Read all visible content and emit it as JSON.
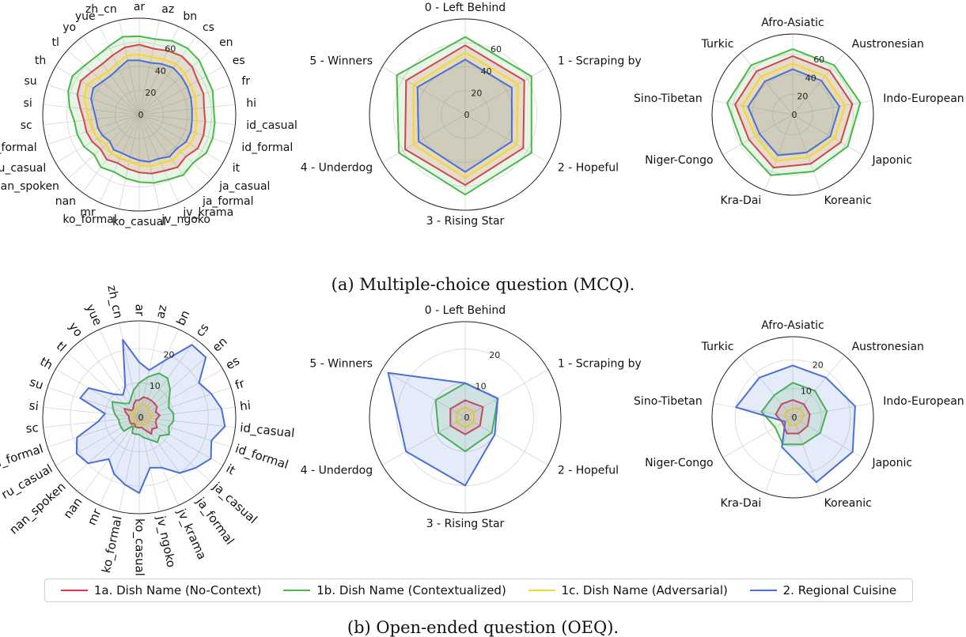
{
  "captions": {
    "a": "(a) Multiple-choice question (MCQ).",
    "b": "(b) Open-ended question (OEQ)."
  },
  "legend": [
    {
      "label": "1a. Dish Name (No-Context)",
      "color": "#e8334f"
    },
    {
      "label": "1b. Dish Name (Contextualized)",
      "color": "#4cb848"
    },
    {
      "label": "1c. Dish Name (Adversarial)",
      "color": "#f5d633"
    },
    {
      "label": "2. Regional Cuisine",
      "color": "#4a6fd8"
    }
  ],
  "chart_data": [
    {
      "type": "radar",
      "panel": "MCQ - by language",
      "rmax": 80,
      "ticks": [
        0,
        20,
        40,
        60
      ],
      "categories": [
        "ar",
        "az",
        "bn",
        "cs",
        "en",
        "es",
        "fr",
        "hi",
        "id_casual",
        "id_formal",
        "it",
        "ja_casual",
        "ja_formal",
        "jv_krama",
        "jv_ngoko",
        "ko_casual",
        "ko_formal",
        "mr",
        "nan",
        "nan_spoken",
        "ru_casual",
        "ru_formal",
        "sc",
        "si",
        "su",
        "th",
        "tl",
        "yo",
        "yue",
        "zh_cn"
      ],
      "series": [
        {
          "name": "1a. Dish Name (No-Context)",
          "values": [
            58,
            56,
            58,
            60,
            59,
            56,
            56,
            54,
            55,
            56,
            56,
            52,
            54,
            51,
            50,
            48,
            46,
            44,
            46,
            43,
            45,
            46,
            46,
            49,
            54,
            56,
            53,
            52,
            54,
            57
          ]
        },
        {
          "name": "1b. Dish Name (Contextualized)",
          "values": [
            65,
            64,
            67,
            68,
            67,
            64,
            64,
            62,
            63,
            64,
            64,
            60,
            62,
            59,
            58,
            56,
            54,
            52,
            54,
            50,
            53,
            54,
            54,
            58,
            62,
            64,
            61,
            60,
            62,
            66
          ]
        },
        {
          "name": "1c. Dish Name (Adversarial)",
          "values": [
            50,
            49,
            50,
            52,
            51,
            49,
            49,
            47,
            48,
            49,
            49,
            46,
            47,
            44,
            44,
            42,
            40,
            39,
            40,
            37,
            40,
            41,
            42,
            44,
            48,
            50,
            46,
            44,
            46,
            50
          ]
        },
        {
          "name": "2. Regional Cuisine",
          "values": [
            45,
            44,
            46,
            48,
            47,
            46,
            45,
            44,
            44,
            45,
            45,
            42,
            43,
            40,
            40,
            38,
            36,
            35,
            36,
            33,
            35,
            36,
            36,
            38,
            42,
            44,
            41,
            40,
            42,
            46
          ]
        }
      ]
    },
    {
      "type": "radar",
      "panel": "MCQ - by resource class",
      "rmax": 80,
      "ticks": [
        0,
        20,
        40,
        60
      ],
      "categories": [
        "0 - Left Behind",
        "1 - Scraping by",
        "2 - Hopeful",
        "3 - Rising Star",
        "4 - Underdog",
        "5 - Winners"
      ],
      "series": [
        {
          "name": "1a. Dish Name (No-Context)",
          "values": [
            58,
            57,
            56,
            59,
            58,
            57
          ]
        },
        {
          "name": "1b. Dish Name (Contextualized)",
          "values": [
            65,
            64,
            64,
            67,
            64,
            66
          ]
        },
        {
          "name": "1c. Dish Name (Adversarial)",
          "values": [
            52,
            51,
            50,
            53,
            50,
            50
          ]
        },
        {
          "name": "2. Regional Cuisine",
          "values": [
            46,
            45,
            45,
            48,
            45,
            46
          ]
        }
      ]
    },
    {
      "type": "radar",
      "panel": "MCQ - by language family",
      "rmax": 80,
      "ticks": [
        0,
        20,
        40,
        60
      ],
      "categories": [
        "Afro-Asiatic",
        "Austronesian",
        "Indo-European",
        "Japonic",
        "Koreanic",
        "Kra-Dai",
        "Niger-Congo",
        "Sino-Tibetan",
        "Turkic"
      ],
      "series": [
        {
          "name": "1a. Dish Name (No-Context)",
          "values": [
            58,
            57,
            60,
            55,
            52,
            56,
            50,
            58,
            56
          ]
        },
        {
          "name": "1b. Dish Name (Contextualized)",
          "values": [
            65,
            64,
            68,
            63,
            60,
            64,
            58,
            66,
            64
          ]
        },
        {
          "name": "1c. Dish Name (Adversarial)",
          "values": [
            51,
            50,
            53,
            48,
            45,
            49,
            43,
            51,
            49
          ]
        },
        {
          "name": "2. Regional Cuisine",
          "values": [
            45,
            44,
            47,
            43,
            40,
            43,
            38,
            45,
            43
          ]
        }
      ]
    },
    {
      "type": "radar",
      "panel": "OEQ - by language",
      "rmax": 28,
      "ticks": [
        0,
        10,
        20
      ],
      "categories": [
        "ar",
        "az",
        "bn",
        "cs",
        "en",
        "es",
        "fr",
        "hi",
        "id_casual",
        "id_formal",
        "it",
        "ja_casual",
        "ja_formal",
        "jv_krama",
        "jv_ngoko",
        "ko_casual",
        "ko_formal",
        "mr",
        "nan",
        "nan_spoken",
        "ru_casual",
        "ru_formal",
        "sc",
        "si",
        "su",
        "th",
        "tl",
        "yo",
        "yue",
        "zh_cn"
      ],
      "series": [
        {
          "name": "1a. Dish Name (No-Context)",
          "values": [
            5,
            6,
            6,
            6,
            6,
            6,
            5,
            6,
            5,
            5,
            6,
            5,
            6,
            4,
            3,
            3,
            3,
            3,
            2,
            3,
            3,
            3,
            3,
            3,
            4,
            5,
            3,
            3,
            4,
            5
          ]
        },
        {
          "name": "1b. Dish Name (Contextualized)",
          "values": [
            10,
            12,
            14,
            14,
            12,
            10,
            9,
            10,
            10,
            9,
            10,
            8,
            9,
            7,
            6,
            5,
            5,
            5,
            3,
            6,
            6,
            6,
            6,
            7,
            8,
            9,
            6,
            5,
            6,
            8
          ]
        },
        {
          "name": "1c. Dish Name (Adversarial)",
          "values": [
            3,
            4,
            4,
            4,
            4,
            3,
            3,
            4,
            3,
            3,
            3,
            3,
            3,
            2,
            2,
            2,
            2,
            2,
            2,
            2,
            2,
            2,
            2,
            2,
            2,
            3,
            2,
            2,
            2,
            3
          ]
        },
        {
          "name": "2. Regional Cuisine",
          "values": [
            16,
            14,
            18,
            26,
            26,
            20,
            22,
            24,
            25,
            22,
            24,
            22,
            20,
            16,
            15,
            22,
            20,
            18,
            15,
            20,
            21,
            19,
            12,
            10,
            18,
            17,
            10,
            8,
            10,
            23
          ]
        }
      ]
    },
    {
      "type": "radar",
      "panel": "OEQ - by resource class",
      "rmax": 28,
      "ticks": [
        0,
        10,
        20
      ],
      "categories": [
        "0 - Left Behind",
        "1 - Scraping by",
        "2 - Hopeful",
        "3 - Rising Star",
        "4 - Underdog",
        "5 - Winners"
      ],
      "series": [
        {
          "name": "1a. Dish Name (No-Context)",
          "values": [
            5,
            6,
            5,
            5,
            5,
            5
          ]
        },
        {
          "name": "1b. Dish Name (Contextualized)",
          "values": [
            10,
            11,
            9,
            10,
            9,
            10
          ]
        },
        {
          "name": "1c. Dish Name (Adversarial)",
          "values": [
            3,
            3,
            3,
            3,
            3,
            3
          ]
        },
        {
          "name": "2. Regional Cuisine",
          "values": [
            10,
            11,
            10,
            20,
            20,
            26
          ]
        }
      ]
    },
    {
      "type": "radar",
      "panel": "OEQ - by language family",
      "rmax": 28,
      "ticks": [
        0,
        10,
        20
      ],
      "categories": [
        "Afro-Asiatic",
        "Austronesian",
        "Indo-European",
        "Japonic",
        "Koreanic",
        "Kra-Dai",
        "Niger-Congo",
        "Sino-Tibetan",
        "Turkic"
      ],
      "series": [
        {
          "name": "1a. Dish Name (No-Context)",
          "values": [
            6,
            6,
            6,
            6,
            6,
            6,
            4,
            6,
            6
          ]
        },
        {
          "name": "1b. Dish Name (Contextualized)",
          "values": [
            12,
            12,
            12,
            11,
            10,
            10,
            7,
            11,
            10
          ]
        },
        {
          "name": "1c. Dish Name (Adversarial)",
          "values": [
            3,
            4,
            4,
            3,
            3,
            3,
            2,
            3,
            3
          ]
        },
        {
          "name": "2. Regional Cuisine",
          "values": [
            18,
            18,
            22,
            24,
            24,
            11,
            3,
            20,
            18
          ]
        }
      ]
    }
  ]
}
